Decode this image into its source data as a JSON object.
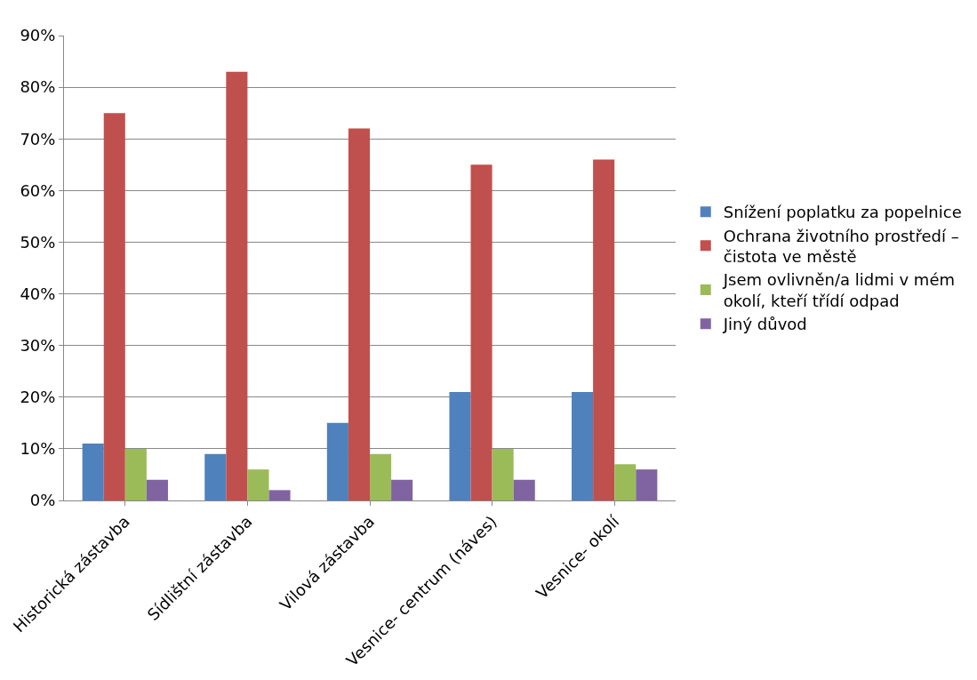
{
  "chart_data": {
    "type": "bar",
    "categories": [
      "Historická zástavba",
      "Sídlištní zástavba",
      "Vilová zástavba",
      "Vesnice- centrum (náves)",
      "Vesnice- okolí"
    ],
    "series": [
      {
        "name": "Snížení poplatku za popelnice",
        "color": "#4f81bd",
        "values": [
          0.11,
          0.09,
          0.15,
          0.21,
          0.21
        ]
      },
      {
        "name": "Ochrana životního prostředí – čistota ve městě",
        "color": "#c0504d",
        "values": [
          0.75,
          0.83,
          0.72,
          0.65,
          0.66
        ]
      },
      {
        "name": "Jsem ovlivněn/a lidmi v mém okolí, kteří třídí odpad",
        "color": "#9bbb59",
        "values": [
          0.1,
          0.06,
          0.09,
          0.1,
          0.07
        ]
      },
      {
        "name": "Jiný důvod",
        "color": "#8064a2",
        "values": [
          0.04,
          0.02,
          0.04,
          0.04,
          0.06
        ]
      }
    ],
    "ylim": [
      0,
      0.9
    ],
    "yticks": [
      {
        "value": 0,
        "label": "0%"
      },
      {
        "value": 0.1,
        "label": "10%"
      },
      {
        "value": 0.2,
        "label": "20%"
      },
      {
        "value": 0.3,
        "label": "30%"
      },
      {
        "value": 0.4,
        "label": "40%"
      },
      {
        "value": 0.5,
        "label": "50%"
      },
      {
        "value": 0.6,
        "label": "60%"
      },
      {
        "value": 0.7,
        "label": "70%"
      },
      {
        "value": 0.8,
        "label": "80%"
      },
      {
        "value": 0.9,
        "label": "90%"
      }
    ],
    "grid": "y",
    "legend": "right"
  }
}
